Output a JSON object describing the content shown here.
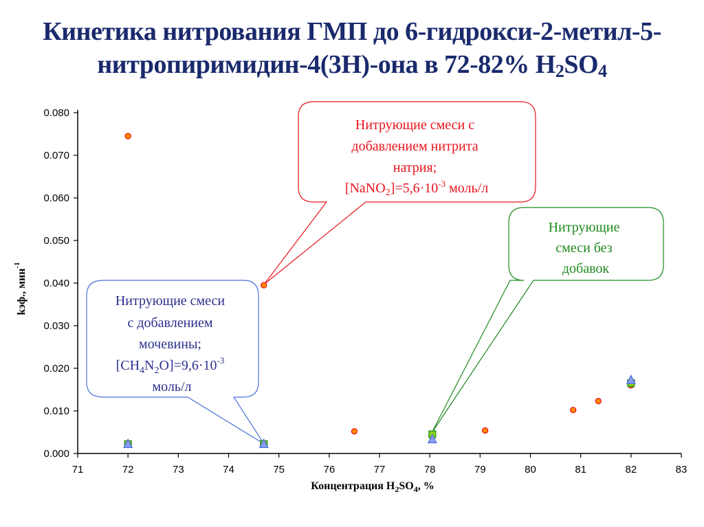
{
  "title": {
    "line1": "Кинетика нитрования ГМП до 6-гидрокси-2-метил-5-",
    "line2_prefix": "нитропиримидин-4(3Н)-она в 72-82% H",
    "line2_sub1": "2",
    "line2_mid": "SO",
    "line2_sub2": "4"
  },
  "axes": {
    "x_label_prefix": "Концентрация H",
    "x_label_sub1": "2",
    "x_label_mid": "SO",
    "x_label_sub2": "4",
    "x_label_suffix": ", %",
    "y_label": "kэф., мин",
    "y_label_sup": "-1",
    "x_ticks": [
      "71",
      "72",
      "73",
      "74",
      "75",
      "76",
      "77",
      "78",
      "79",
      "80",
      "81",
      "82",
      "83"
    ],
    "y_ticks": [
      "0.000",
      "0.010",
      "0.020",
      "0.030",
      "0.040",
      "0.050",
      "0.060",
      "0.070",
      "0.080"
    ]
  },
  "callouts": {
    "nitrite": {
      "lines": [
        "Нитрующие смеси с",
        "добавлением нитрита",
        "натрия;"
      ],
      "formula_prefix": "[NaNO",
      "formula_sub": "2",
      "formula_mid": "]=5,6·10",
      "formula_sup": "-3",
      "formula_suffix": " моль/л",
      "color": "#e8141c"
    },
    "none": {
      "lines": [
        "Нитрующие",
        "смеси без",
        "добавок"
      ],
      "color": "#1e8a1e"
    },
    "urea": {
      "lines": [
        "Нитрующие смеси",
        "с добавлением",
        "мочевины;"
      ],
      "formula_prefix": "[CH",
      "formula_sub1": "4",
      "formula_mid1": "N",
      "formula_sub2": "2",
      "formula_mid2": "O]=9,6·10",
      "formula_sup": "-3",
      "line_last": "моль/л",
      "color": "#2b2f8c",
      "border": "#4a6fd8"
    }
  },
  "chart_data": {
    "type": "scatter",
    "title": "Кинетика нитрования ГМП до 6-гидрокси-2-метил-5-нитропиримидин-4(3Н)-она в 72-82% H2SO4",
    "xlabel": "Концентрация H2SO4, %",
    "ylabel": "kэф., мин-1",
    "xlim": [
      71,
      83
    ],
    "ylim": [
      0,
      0.08
    ],
    "grid": false,
    "legend": "none (callouts used instead)",
    "series": [
      {
        "name": "Нитрующие смеси с добавлением нитрита натрия; [NaNO2]=5,6·10-3 моль/л",
        "marker": "circle",
        "color": "#ff8c00",
        "edge": "#e8141c",
        "x": [
          72.0,
          74.7,
          76.5,
          78.05,
          79.1,
          80.85,
          81.35,
          82.0
        ],
        "y": [
          0.0745,
          0.0395,
          0.0052,
          0.004,
          0.0054,
          0.0102,
          0.0123,
          0.016
        ]
      },
      {
        "name": "Нитрующие смеси без добавок",
        "marker": "square",
        "color": "#8ccf1a",
        "edge": "#1e8a1e",
        "x": [
          72.0,
          74.7,
          78.05,
          82.0
        ],
        "y": [
          0.0022,
          0.0022,
          0.0045,
          0.0165
        ]
      },
      {
        "name": "Нитрующие смеси с добавлением мочевины; [CH4N2O]=9,6·10-3 моль/л",
        "marker": "triangle",
        "color": "#8c9cf0",
        "edge": "#4a6fd8",
        "x": [
          72.0,
          74.7,
          78.05,
          82.0
        ],
        "y": [
          0.0022,
          0.0022,
          0.0033,
          0.0172
        ]
      }
    ]
  }
}
